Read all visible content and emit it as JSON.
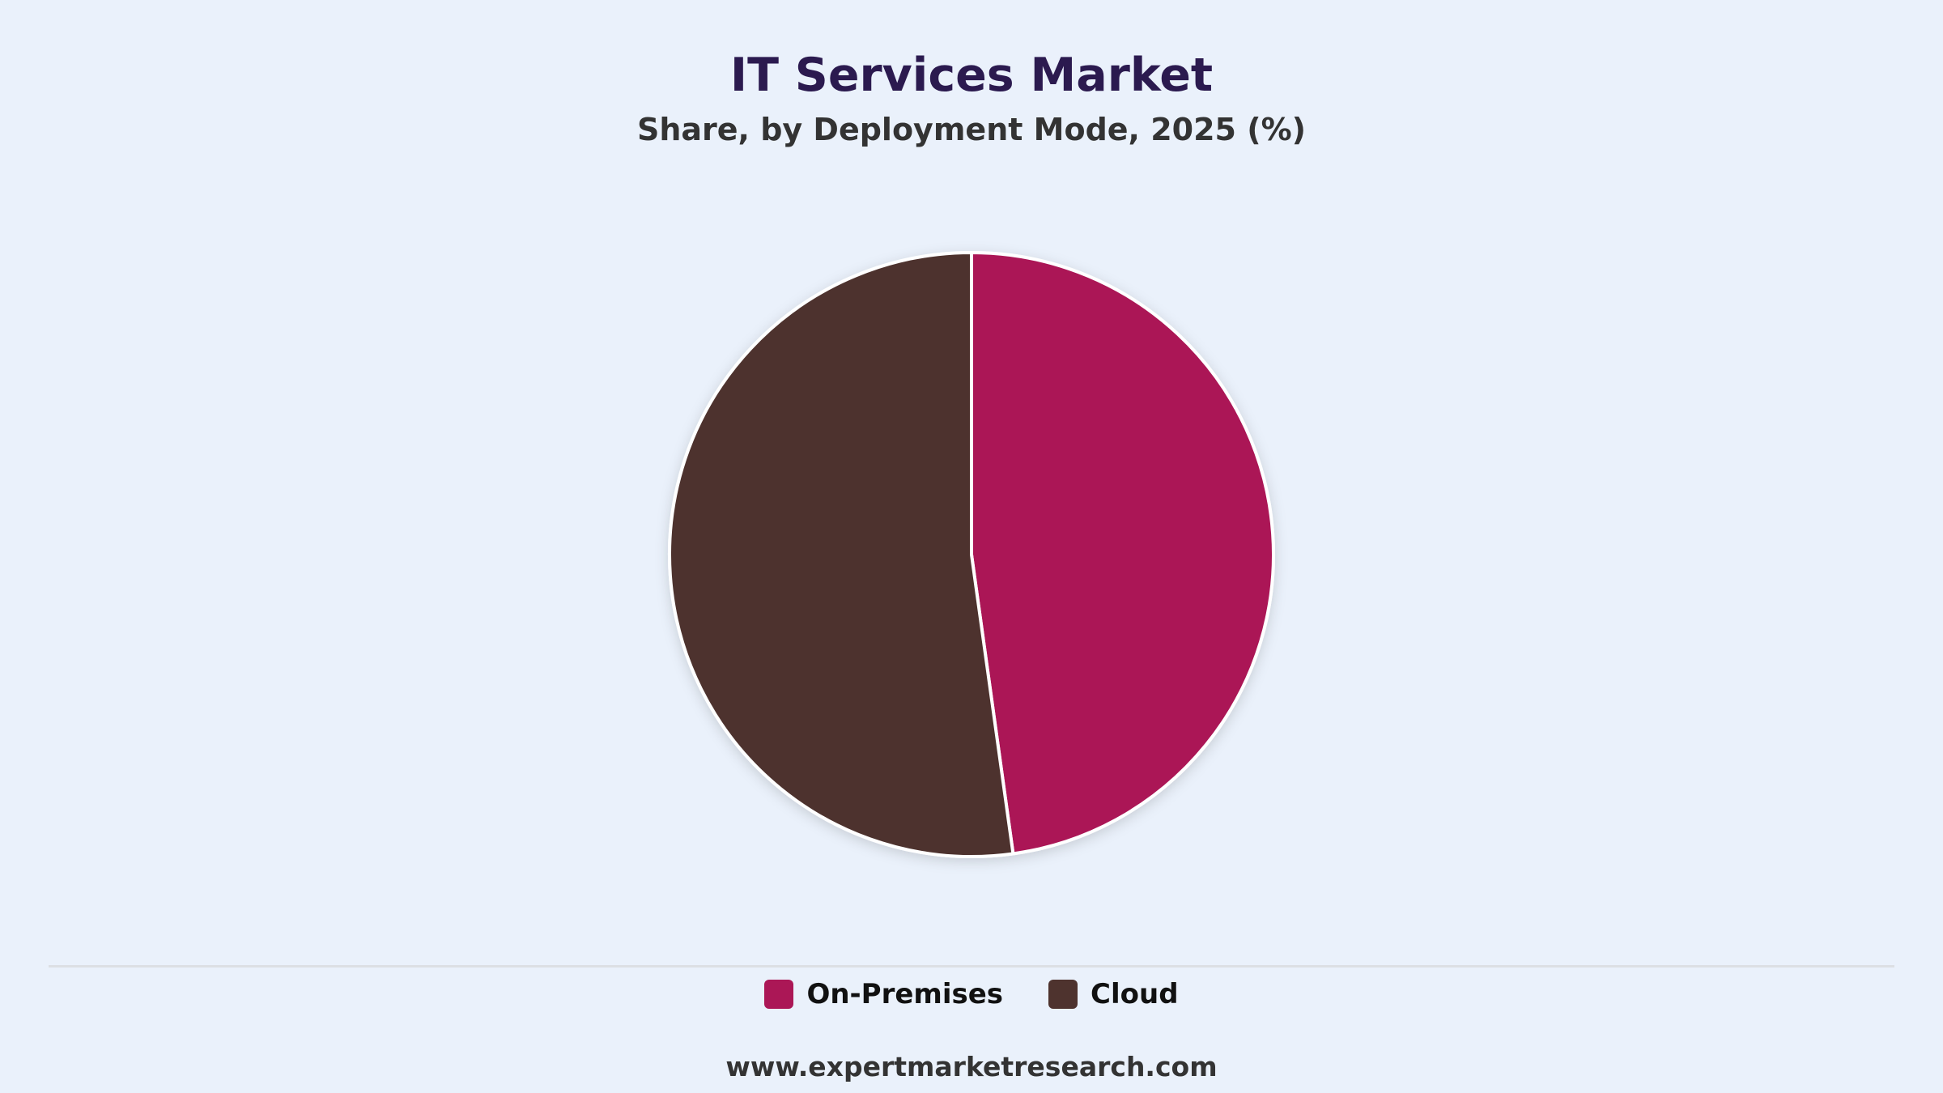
{
  "title": "IT Services Market",
  "subtitle": "Share, by Deployment Mode, 2025 (%)",
  "source": "www.expertmarketresearch.com",
  "chart_data": {
    "type": "pie",
    "title": "IT Services Market",
    "subtitle": "Share, by Deployment Mode, 2025 (%)",
    "categories": [
      "On-Premises",
      "Cloud"
    ],
    "values": [
      47.8,
      52.2
    ],
    "colors": [
      "#ab1756",
      "#4e332e"
    ],
    "start_angle_deg": 0,
    "direction": "clockwise",
    "legend_position": "bottom"
  }
}
